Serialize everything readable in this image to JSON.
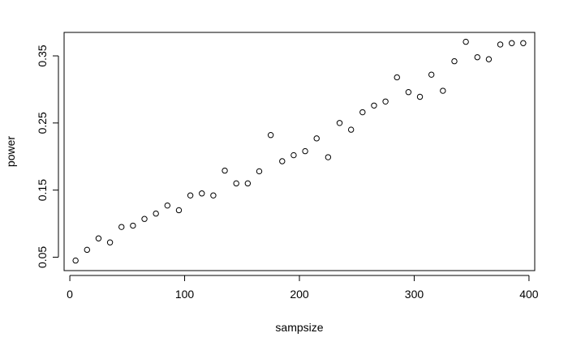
{
  "chart_data": {
    "type": "scatter",
    "title": "",
    "xlabel": "sampsize",
    "ylabel": "power",
    "xlim": [
      -5,
      405
    ],
    "ylim": [
      0.03,
      0.385
    ],
    "xticks": [
      0,
      100,
      200,
      300,
      400
    ],
    "yticks": [
      0.05,
      0.15,
      0.25,
      0.35
    ],
    "xtick_labels": [
      "0",
      "100",
      "200",
      "300",
      "400"
    ],
    "ytick_labels": [
      "0.05",
      "0.15",
      "0.25",
      "0.35"
    ],
    "grid": false,
    "marker": "open-circle",
    "x": [
      5,
      15,
      25,
      35,
      45,
      55,
      65,
      75,
      85,
      95,
      105,
      115,
      125,
      135,
      145,
      155,
      165,
      175,
      185,
      195,
      205,
      215,
      225,
      235,
      245,
      255,
      265,
      275,
      285,
      295,
      305,
      315,
      325,
      335,
      345,
      355,
      365,
      375,
      385,
      395
    ],
    "y": [
      0.045,
      0.061,
      0.078,
      0.072,
      0.095,
      0.097,
      0.107,
      0.115,
      0.127,
      0.12,
      0.142,
      0.145,
      0.142,
      0.179,
      0.16,
      0.16,
      0.178,
      0.232,
      0.193,
      0.202,
      0.208,
      0.227,
      0.199,
      0.25,
      0.24,
      0.266,
      0.276,
      0.282,
      0.318,
      0.296,
      0.289,
      0.322,
      0.298,
      0.342,
      0.371,
      0.348,
      0.345,
      0.367,
      0.369,
      0.369
    ]
  }
}
